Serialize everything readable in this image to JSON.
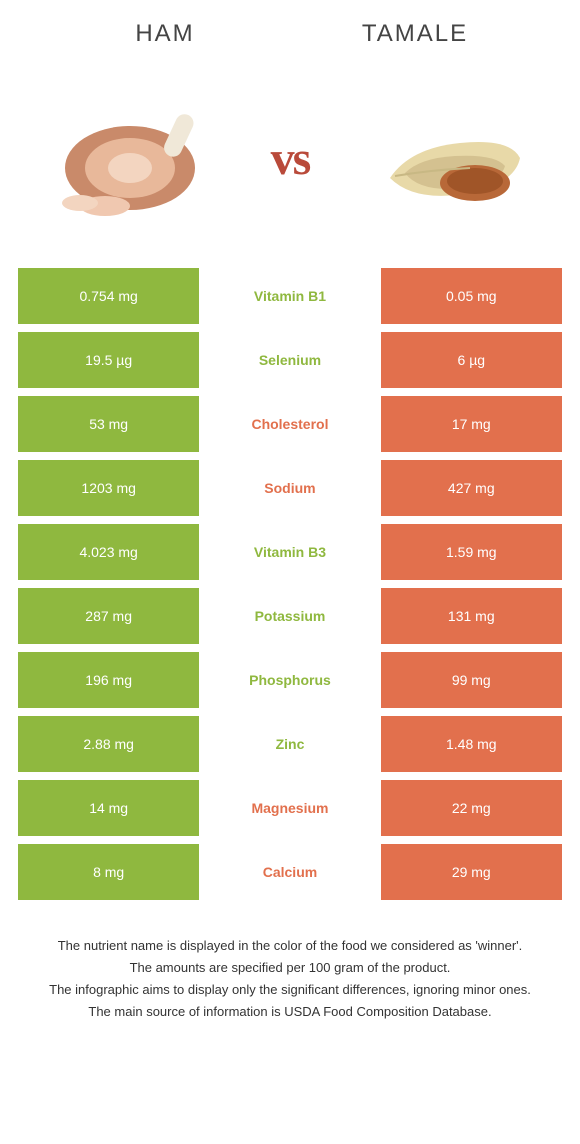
{
  "header": {
    "left": "HAM",
    "right": "TAMALE"
  },
  "vs": "vs",
  "colors": {
    "left": "#8fb83f",
    "right": "#e2704d",
    "mid_left": "#8fb83f",
    "mid_right": "#e2704d"
  },
  "rows": [
    {
      "left": "0.754 mg",
      "nutrient": "Vitamin B1",
      "right": "0.05 mg",
      "winner": "left"
    },
    {
      "left": "19.5 µg",
      "nutrient": "Selenium",
      "right": "6 µg",
      "winner": "left"
    },
    {
      "left": "53 mg",
      "nutrient": "Cholesterol",
      "right": "17 mg",
      "winner": "right"
    },
    {
      "left": "1203 mg",
      "nutrient": "Sodium",
      "right": "427 mg",
      "winner": "right"
    },
    {
      "left": "4.023 mg",
      "nutrient": "Vitamin B3",
      "right": "1.59 mg",
      "winner": "left"
    },
    {
      "left": "287 mg",
      "nutrient": "Potassium",
      "right": "131 mg",
      "winner": "left"
    },
    {
      "left": "196 mg",
      "nutrient": "Phosphorus",
      "right": "99 mg",
      "winner": "left"
    },
    {
      "left": "2.88 mg",
      "nutrient": "Zinc",
      "right": "1.48 mg",
      "winner": "left"
    },
    {
      "left": "14 mg",
      "nutrient": "Magnesium",
      "right": "22 mg",
      "winner": "right"
    },
    {
      "left": "8 mg",
      "nutrient": "Calcium",
      "right": "29 mg",
      "winner": "right"
    }
  ],
  "footer": {
    "line1": "The nutrient name is displayed in the color of the food we considered as 'winner'.",
    "line2": "The amounts are specified per 100 gram of the product.",
    "line3": "The infographic aims to display only the significant differences, ignoring minor ones.",
    "line4": "The main source of information is USDA Food Composition Database."
  }
}
